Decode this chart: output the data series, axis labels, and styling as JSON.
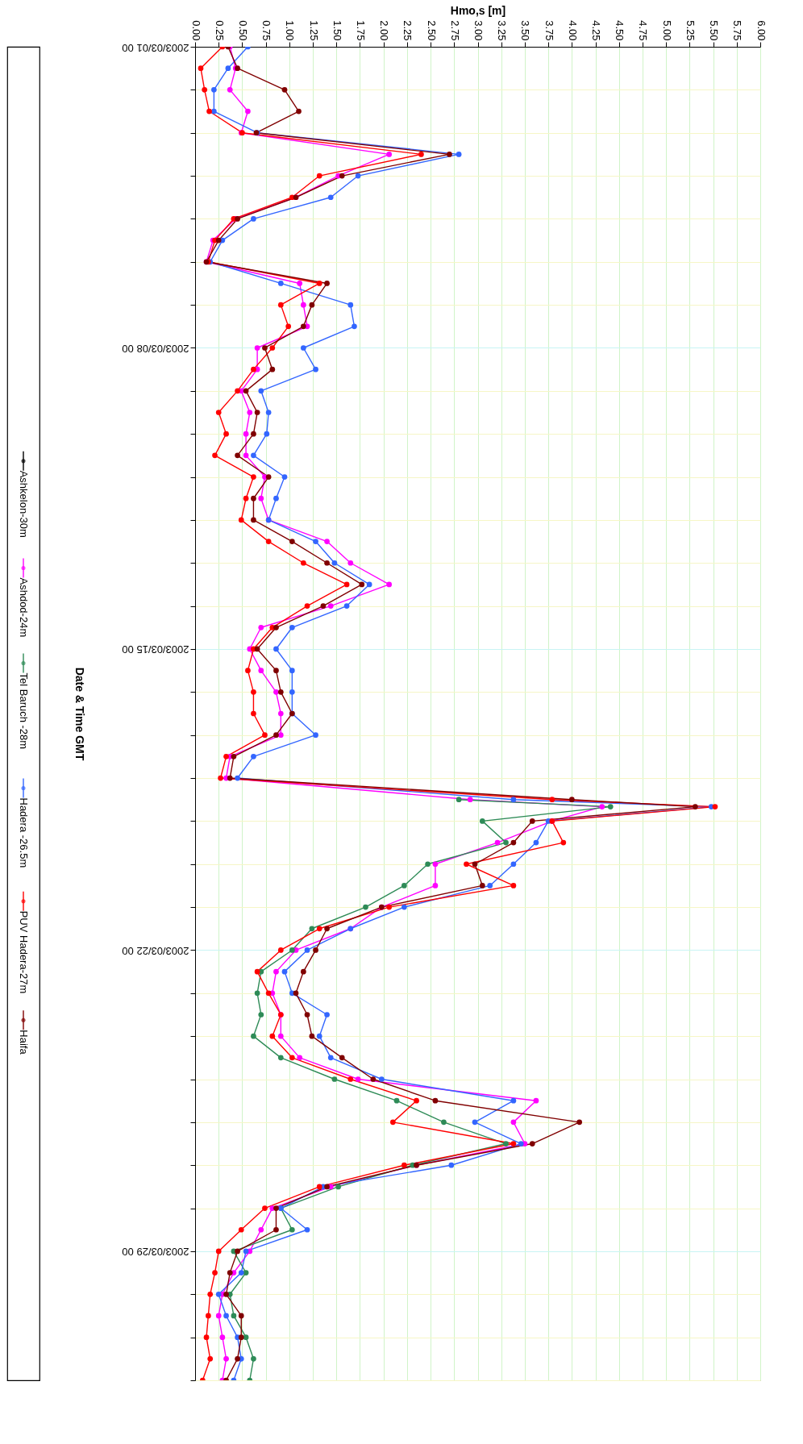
{
  "chart_data": {
    "type": "line",
    "orientation": "horizontal",
    "xlabel": "Hmo,s [m]",
    "ylabel": "Date & Time GMT",
    "x": [
      "2003-03-01T00:00",
      "2003-03-01T12:00",
      "2003-03-02T00:00",
      "2003-03-02T12:00",
      "2003-03-03T00:00",
      "2003-03-03T12:00",
      "2003-03-04T00:00",
      "2003-03-04T12:00",
      "2003-03-05T00:00",
      "2003-03-05T12:00",
      "2003-03-06T00:00",
      "2003-03-06T12:00",
      "2003-03-07T00:00",
      "2003-03-07T12:00",
      "2003-03-08T00:00",
      "2003-03-08T12:00",
      "2003-03-09T00:00",
      "2003-03-09T12:00",
      "2003-03-10T00:00",
      "2003-03-10T12:00",
      "2003-03-11T00:00",
      "2003-03-11T12:00",
      "2003-03-12T00:00",
      "2003-03-12T12:00",
      "2003-03-13T00:00",
      "2003-03-13T12:00",
      "2003-03-14T00:00",
      "2003-03-14T12:00",
      "2003-03-15T00:00",
      "2003-03-15T12:00",
      "2003-03-16T00:00",
      "2003-03-16T12:00",
      "2003-03-17T00:00",
      "2003-03-17T12:00",
      "2003-03-18T00:00",
      "2003-03-18T12:00",
      "2003-03-18T16:00",
      "2003-03-19T00:00",
      "2003-03-19T12:00",
      "2003-03-20T00:00",
      "2003-03-20T12:00",
      "2003-03-21T00:00",
      "2003-03-21T12:00",
      "2003-03-22T00:00",
      "2003-03-22T12:00",
      "2003-03-23T00:00",
      "2003-03-23T12:00",
      "2003-03-24T00:00",
      "2003-03-24T12:00",
      "2003-03-25T00:00",
      "2003-03-25T12:00",
      "2003-03-26T00:00",
      "2003-03-26T12:00",
      "2003-03-27T00:00",
      "2003-03-27T12:00",
      "2003-03-28T00:00",
      "2003-03-28T12:00",
      "2003-03-29T00:00",
      "2003-03-29T12:00",
      "2003-03-30T00:00",
      "2003-03-30T12:00",
      "2003-03-31T00:00",
      "2003-03-31T12:00",
      "2003-04-01T00:00"
    ],
    "series": [
      {
        "name": "Ashkelon-30m",
        "color": "#000000",
        "values": [
          null,
          null,
          null,
          null,
          null,
          null,
          null,
          null,
          null,
          null,
          null,
          null,
          null,
          null,
          null,
          null,
          null,
          null,
          null,
          null,
          null,
          null,
          null,
          null,
          null,
          null,
          null,
          null,
          null,
          null,
          null,
          null,
          null,
          null,
          null,
          null,
          null,
          null,
          null,
          null,
          null,
          null,
          null,
          null,
          null,
          null,
          null,
          null,
          null,
          null,
          null,
          null,
          null,
          null,
          null,
          null,
          null,
          null,
          null,
          null,
          null,
          null,
          null,
          null
        ]
      },
      {
        "name": "Ashdod-24m",
        "color": "#ff00ff",
        "values": [
          0.37,
          0.43,
          0.37,
          0.56,
          0.49,
          2.06,
          1.52,
          1.07,
          0.43,
          0.19,
          0.12,
          1.11,
          1.15,
          1.19,
          0.66,
          0.66,
          0.49,
          0.58,
          0.54,
          0.54,
          0.74,
          0.7,
          0.78,
          1.4,
          1.65,
          2.06,
          1.44,
          0.7,
          0.58,
          0.7,
          0.86,
          0.91,
          0.91,
          0.37,
          0.33,
          2.92,
          4.32,
          3.79,
          3.21,
          2.55,
          2.55,
          1.98,
          1.65,
          1.07,
          0.86,
          0.82,
          0.91,
          0.91,
          1.11,
          1.73,
          3.62,
          3.38,
          3.5,
          2.35,
          1.44,
          0.82,
          0.7,
          0.58,
          0.41,
          0.29,
          0.25,
          0.29,
          0.33,
          0.29
        ]
      },
      {
        "name": "Tel Baruch -28m",
        "color": "#2e8b57",
        "values": [
          null,
          null,
          null,
          null,
          null,
          null,
          null,
          null,
          null,
          null,
          null,
          null,
          null,
          null,
          null,
          null,
          null,
          null,
          null,
          null,
          null,
          null,
          null,
          null,
          null,
          null,
          null,
          null,
          null,
          null,
          null,
          null,
          null,
          null,
          null,
          2.8,
          4.41,
          3.05,
          3.3,
          2.47,
          2.22,
          1.81,
          1.24,
          1.03,
          0.7,
          0.66,
          0.7,
          0.62,
          0.91,
          1.48,
          2.14,
          2.64,
          3.3,
          2.31,
          1.52,
          0.91,
          1.03,
          0.41,
          0.54,
          0.37,
          0.41,
          0.54,
          0.62,
          0.58
        ]
      },
      {
        "name": "Hadera -26.5m",
        "color": "#3366ff",
        "values": [
          0.56,
          0.35,
          0.2,
          0.2,
          0.66,
          2.8,
          1.73,
          1.44,
          0.62,
          0.29,
          0.16,
          0.91,
          1.65,
          1.69,
          1.15,
          1.28,
          0.7,
          0.78,
          0.76,
          0.62,
          0.95,
          0.86,
          0.78,
          1.28,
          1.48,
          1.85,
          1.61,
          1.03,
          0.86,
          1.03,
          1.03,
          1.03,
          1.28,
          0.62,
          0.45,
          3.38,
          5.48,
          3.75,
          3.62,
          3.38,
          3.13,
          2.22,
          1.65,
          1.19,
          0.95,
          1.03,
          1.4,
          1.32,
          1.44,
          1.98,
          3.38,
          2.97,
          3.46,
          2.72,
          1.36,
          0.91,
          1.19,
          0.54,
          0.49,
          0.25,
          0.33,
          0.45,
          0.49,
          0.41
        ]
      },
      {
        "name": "PUV Hadera-27m",
        "color": "#ff0000",
        "values": [
          0.29,
          0.06,
          0.1,
          0.15,
          0.5,
          2.4,
          1.32,
          1.03,
          0.41,
          0.21,
          0.14,
          1.32,
          0.91,
          0.99,
          0.82,
          0.62,
          0.45,
          0.25,
          0.33,
          0.21,
          0.62,
          0.54,
          0.49,
          0.78,
          1.15,
          1.61,
          1.19,
          0.82,
          0.62,
          0.56,
          0.62,
          0.62,
          0.74,
          0.33,
          0.27,
          3.79,
          5.52,
          3.79,
          3.91,
          2.88,
          3.38,
          2.06,
          1.32,
          0.91,
          0.66,
          0.78,
          0.91,
          0.82,
          1.03,
          1.65,
          2.35,
          2.1,
          3.38,
          2.22,
          1.32,
          0.74,
          0.49,
          0.25,
          0.21,
          0.16,
          0.14,
          0.12,
          0.16,
          0.08
        ]
      },
      {
        "name": "Haifa",
        "color": "#800000",
        "values": [
          0.35,
          0.45,
          0.95,
          1.1,
          0.65,
          2.7,
          1.56,
          1.07,
          0.45,
          0.25,
          0.12,
          1.4,
          1.24,
          1.15,
          0.74,
          0.82,
          0.54,
          0.66,
          0.62,
          0.45,
          0.78,
          0.62,
          0.62,
          1.03,
          1.4,
          1.77,
          1.36,
          0.86,
          0.66,
          0.86,
          0.91,
          1.03,
          0.86,
          0.41,
          0.37,
          4.0,
          5.31,
          3.58,
          3.38,
          2.97,
          3.05,
          1.98,
          1.4,
          1.28,
          1.15,
          1.07,
          1.19,
          1.24,
          1.56,
          1.89,
          2.55,
          4.08,
          3.58,
          2.35,
          1.4,
          0.86,
          0.86,
          0.45,
          0.37,
          0.33,
          0.49,
          0.49,
          0.45,
          0.33
        ]
      }
    ],
    "ylim": [
      "2003-04-01",
      "2003-03-01"
    ],
    "yticks": [
      {
        "value": "2003-03-01",
        "label": "2003/03/01 00"
      },
      {
        "value": "2003-03-02",
        "label": null
      },
      {
        "value": "2003-03-03",
        "label": null
      },
      {
        "value": "2003-03-04",
        "label": null
      },
      {
        "value": "2003-03-05",
        "label": null
      },
      {
        "value": "2003-03-06",
        "label": null
      },
      {
        "value": "2003-03-07",
        "label": null
      },
      {
        "value": "2003-03-08",
        "label": "2003/03/08 00"
      },
      {
        "value": "2003-03-09",
        "label": null
      },
      {
        "value": "2003-03-10",
        "label": null
      },
      {
        "value": "2003-03-11",
        "label": null
      },
      {
        "value": "2003-03-12",
        "label": null
      },
      {
        "value": "2003-03-13",
        "label": null
      },
      {
        "value": "2003-03-14",
        "label": null
      },
      {
        "value": "2003-03-15",
        "label": "2003/03/15 00"
      },
      {
        "value": "2003-03-16",
        "label": null
      },
      {
        "value": "2003-03-17",
        "label": null
      },
      {
        "value": "2003-03-18",
        "label": null
      },
      {
        "value": "2003-03-19",
        "label": null
      },
      {
        "value": "2003-03-20",
        "label": null
      },
      {
        "value": "2003-03-21",
        "label": null
      },
      {
        "value": "2003-03-22",
        "label": "2003/03/22 00"
      },
      {
        "value": "2003-03-23",
        "label": null
      },
      {
        "value": "2003-03-24",
        "label": null
      },
      {
        "value": "2003-03-25",
        "label": null
      },
      {
        "value": "2003-03-26",
        "label": null
      },
      {
        "value": "2003-03-27",
        "label": null
      },
      {
        "value": "2003-03-28",
        "label": null
      },
      {
        "value": "2003-03-29",
        "label": "2003/03/29 00"
      },
      {
        "value": "2003-03-30",
        "label": null
      },
      {
        "value": "2003-03-31",
        "label": null
      },
      {
        "value": "2003-04-01",
        "label": null
      }
    ],
    "xlim": [
      0,
      6
    ],
    "xticks": [
      {
        "value": 0,
        "label": "0.00"
      },
      {
        "value": 0.25,
        "label": "0.25"
      },
      {
        "value": 0.5,
        "label": "0.50"
      },
      {
        "value": 0.75,
        "label": "0.75"
      },
      {
        "value": 1,
        "label": "1.00"
      },
      {
        "value": 1.25,
        "label": "1.25"
      },
      {
        "value": 1.5,
        "label": "1.50"
      },
      {
        "value": 1.75,
        "label": "1.75"
      },
      {
        "value": 2,
        "label": "2.00"
      },
      {
        "value": 2.25,
        "label": "2.25"
      },
      {
        "value": 2.5,
        "label": "2.50"
      },
      {
        "value": 2.75,
        "label": "2.75"
      },
      {
        "value": 3,
        "label": "3.00"
      },
      {
        "value": 3.25,
        "label": "3.25"
      },
      {
        "value": 3.5,
        "label": "3.50"
      },
      {
        "value": 3.75,
        "label": "3.75"
      },
      {
        "value": 4,
        "label": "4.00"
      },
      {
        "value": 4.25,
        "label": "4.25"
      },
      {
        "value": 4.5,
        "label": "4.50"
      },
      {
        "value": 4.75,
        "label": "4.75"
      },
      {
        "value": 5,
        "label": "5.00"
      },
      {
        "value": 5.25,
        "label": "5.25"
      },
      {
        "value": 5.5,
        "label": "5.50"
      },
      {
        "value": 5.75,
        "label": "5.75"
      },
      {
        "value": 6,
        "label": "6.00"
      }
    ],
    "grid": true,
    "legend": "bottom",
    "marker": "circle",
    "line_style": "solid"
  }
}
